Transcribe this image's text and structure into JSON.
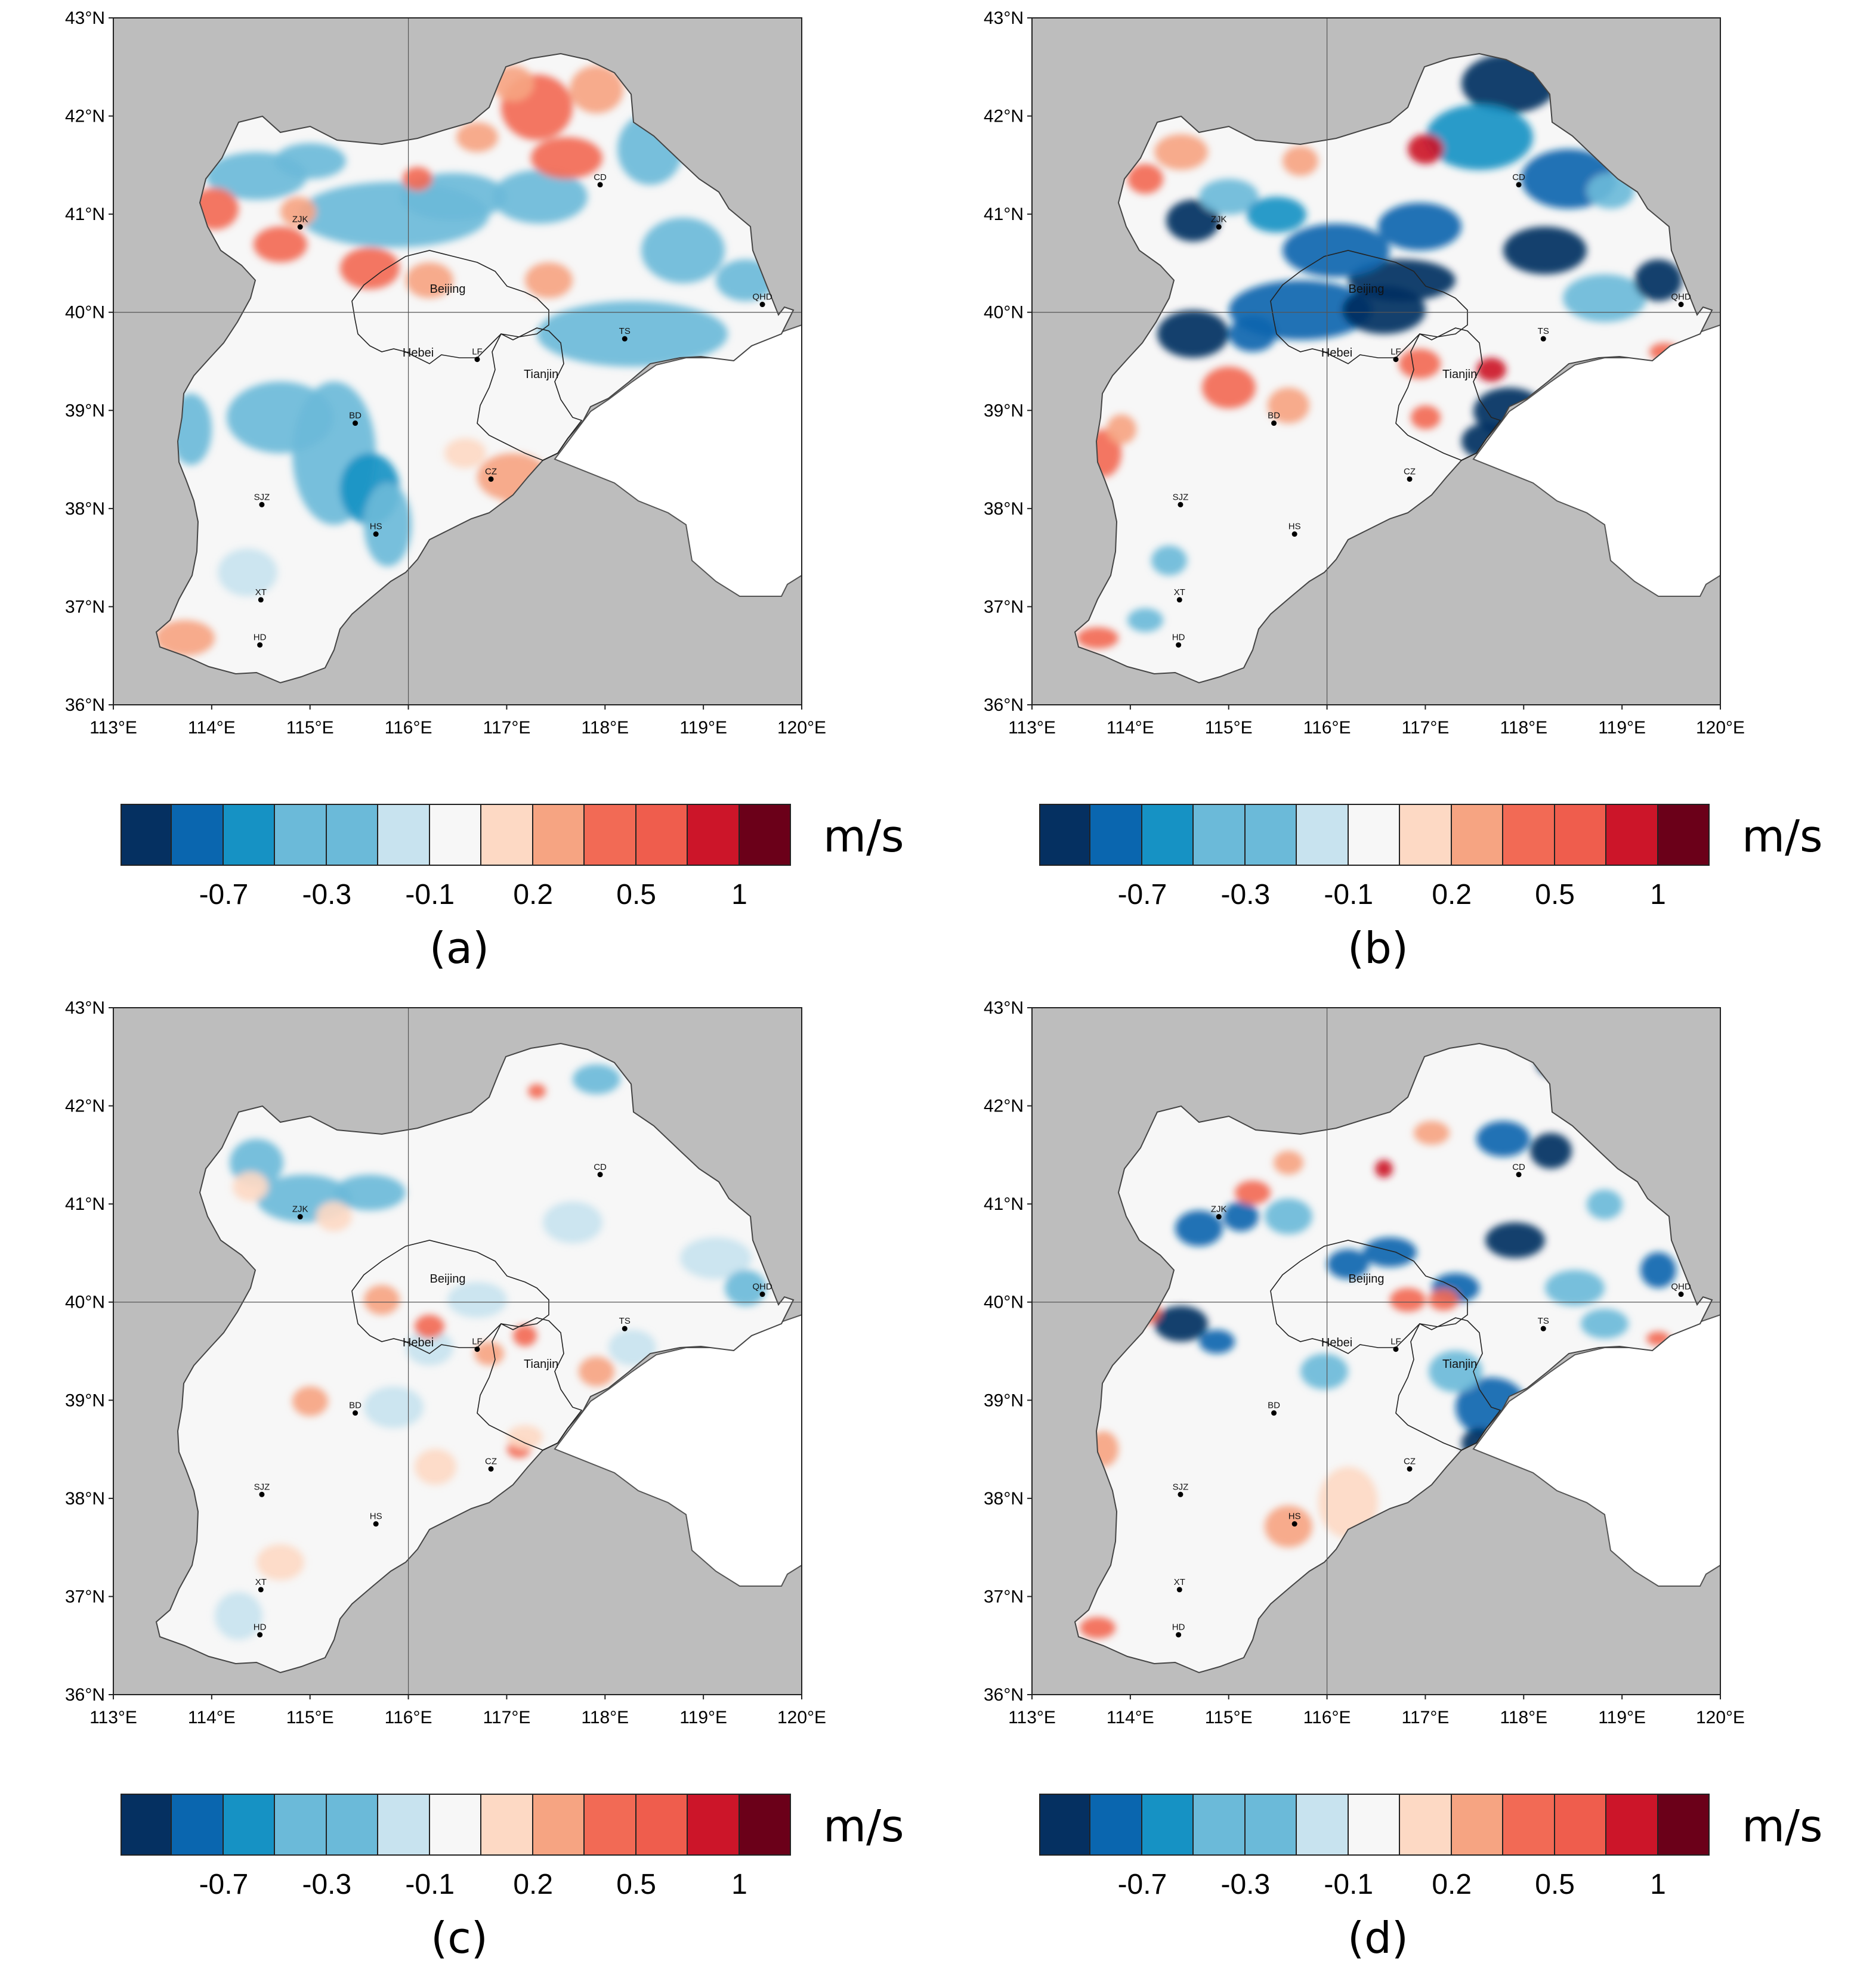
{
  "axes": {
    "lat_ticks": [
      "43°N",
      "42°N",
      "41°N",
      "40°N",
      "39°N",
      "38°N",
      "37°N",
      "36°N"
    ],
    "lon_ticks": [
      "113°E",
      "114°E",
      "115°E",
      "116°E",
      "117°E",
      "118°E",
      "119°E",
      "120°E"
    ],
    "lon_range": [
      113,
      120
    ],
    "lat_range": [
      36,
      43
    ],
    "gridlines": {
      "lon": 116,
      "lat": 40
    }
  },
  "regions": [
    {
      "label": "Beijing",
      "lon": 116.4,
      "lat": 40.2
    },
    {
      "label": "Hebei",
      "lon": 116.1,
      "lat": 39.55
    },
    {
      "label": "Tianjin",
      "lon": 117.35,
      "lat": 39.33
    }
  ],
  "cities": [
    {
      "label": "ZJK",
      "lon": 114.9,
      "lat": 40.87
    },
    {
      "label": "CD",
      "lon": 117.95,
      "lat": 41.3
    },
    {
      "label": "QHD",
      "lon": 119.6,
      "lat": 40.08
    },
    {
      "label": "TS",
      "lon": 118.2,
      "lat": 39.73
    },
    {
      "label": "BD",
      "lon": 115.46,
      "lat": 38.87
    },
    {
      "label": "LF",
      "lon": 116.7,
      "lat": 39.52
    },
    {
      "label": "CZ",
      "lon": 116.84,
      "lat": 38.3
    },
    {
      "label": "SJZ",
      "lon": 114.51,
      "lat": 38.04
    },
    {
      "label": "HS",
      "lon": 115.67,
      "lat": 37.74
    },
    {
      "label": "XT",
      "lon": 114.5,
      "lat": 37.07
    },
    {
      "label": "HD",
      "lon": 114.49,
      "lat": 36.61
    }
  ],
  "colorbar": {
    "colors": [
      "#053061",
      "#0a66af",
      "#1692c4",
      "#6bbad9",
      "#6bbad9",
      "#c8e3ef",
      "#f7f7f7",
      "#fdd9c4",
      "#f6a482",
      "#f26a55",
      "#ef5d4d",
      "#cc1529",
      "#6b0019"
    ],
    "tick_labels": [
      "-0.7",
      "-0.3",
      "-0.1",
      "0.2",
      "0.5",
      "1"
    ],
    "tick_boundary_index": [
      2,
      4,
      6,
      8,
      10,
      12
    ],
    "unit": "m/s"
  },
  "panels": [
    {
      "id": "a",
      "label": "(a)",
      "pattern": "a"
    },
    {
      "id": "b",
      "label": "(b)",
      "pattern": "b"
    },
    {
      "id": "c",
      "label": "(c)",
      "pattern": "c"
    },
    {
      "id": "d",
      "label": "(d)",
      "pattern": "d"
    }
  ]
}
